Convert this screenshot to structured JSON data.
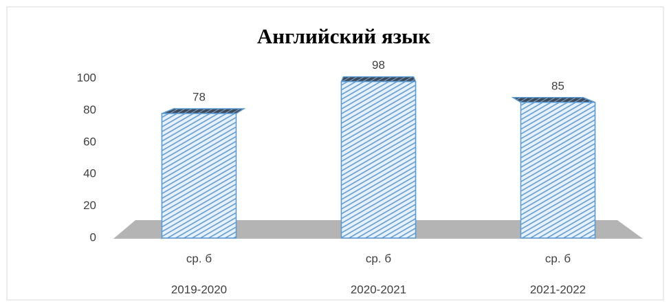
{
  "chart_data": {
    "type": "bar3d",
    "title": "Английский язык",
    "categories": [
      "2019-2020",
      "2020-2021",
      "2021-2022"
    ],
    "subcategories": [
      "ср. б",
      "ср. б",
      "ср. б"
    ],
    "values": [
      78,
      98,
      85
    ],
    "color": "#5b9bd5",
    "ylim": [
      0,
      100
    ],
    "yticks": [
      0,
      20,
      40,
      60,
      80,
      100
    ],
    "grid": false
  }
}
